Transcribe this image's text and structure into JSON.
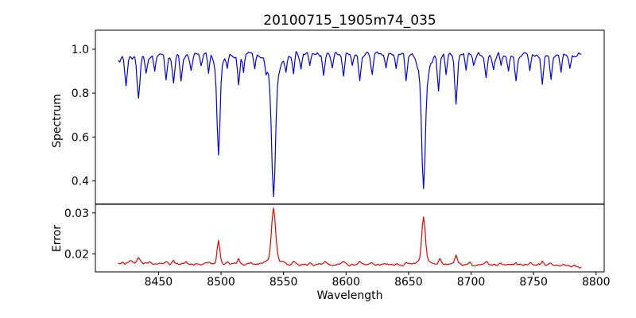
{
  "figure": {
    "background": "#ffffff",
    "text_color": "#000000",
    "axis_color": "#000000"
  },
  "chart_data": {
    "type": "line",
    "title": "20100715_1905m74_035",
    "xlabel": "Wavelength",
    "grid": false,
    "legend": "none",
    "xlim": [
      8399.5,
      8806.5
    ],
    "x_data_range": [
      8418,
      8788
    ],
    "x_sample_step": 1.0,
    "xtick_values": [
      8450,
      8500,
      8550,
      8600,
      8650,
      8700,
      8750,
      8800
    ],
    "xtick_labels": [
      "8450",
      "8500",
      "8550",
      "8600",
      "8650",
      "8700",
      "8750",
      "8800"
    ],
    "panels": [
      {
        "name": "spectrum",
        "ylabel": "Spectrum",
        "line_color": "#0000ee",
        "ylim": [
          0.2953,
          1.0867
        ],
        "ytick_values": [
          0.4,
          0.6,
          0.8,
          1.0
        ],
        "ytick_labels": [
          "0.4",
          "0.6",
          "0.8",
          "1.0"
        ],
        "model": {
          "kind": "absorption_spectrum",
          "continuum_trend": [
            [
              8418,
              0.955
            ],
            [
              8430,
              0.965
            ],
            [
              8460,
              0.97
            ],
            [
              8500,
              0.975
            ],
            [
              8560,
              0.98
            ],
            [
              8620,
              0.976
            ],
            [
              8700,
              0.975
            ],
            [
              8788,
              0.97
            ]
          ],
          "noise_amp": 0.012,
          "noise_seed": 7,
          "absorption_lines": [
            [
              8413,
              0.1,
              1.0
            ],
            [
              8424,
              0.13,
              0.9
            ],
            [
              8434,
              0.19,
              1.1
            ],
            [
              8440,
              0.08,
              0.8
            ],
            [
              8447,
              0.07,
              0.8
            ],
            [
              8456,
              0.1,
              0.9
            ],
            [
              8462,
              0.13,
              0.9
            ],
            [
              8468,
              0.12,
              0.9
            ],
            [
              8476,
              0.07,
              0.8
            ],
            [
              8484,
              0.05,
              0.8
            ],
            [
              8490,
              0.09,
              0.8
            ],
            [
              8498,
              0.38,
              1.1
            ],
            [
              8498,
              0.09,
              3.0
            ],
            [
              8505,
              0.06,
              0.8
            ],
            [
              8514,
              0.15,
              0.9
            ],
            [
              8518,
              0.09,
              0.8
            ],
            [
              8527,
              0.07,
              0.8
            ],
            [
              8536,
              0.05,
              0.8
            ],
            [
              8542,
              0.53,
              1.5
            ],
            [
              8542,
              0.13,
              4.5
            ],
            [
              8552,
              0.07,
              0.8
            ],
            [
              8558,
              0.08,
              0.8
            ],
            [
              8564,
              0.07,
              0.8
            ],
            [
              8571,
              0.06,
              0.8
            ],
            [
              8582,
              0.11,
              0.9
            ],
            [
              8589,
              0.07,
              0.8
            ],
            [
              8598,
              0.11,
              0.9
            ],
            [
              8605,
              0.06,
              0.8
            ],
            [
              8611,
              0.13,
              0.9
            ],
            [
              8621,
              0.09,
              0.9
            ],
            [
              8632,
              0.07,
              0.8
            ],
            [
              8640,
              0.06,
              0.8
            ],
            [
              8648,
              0.11,
              0.9
            ],
            [
              8662,
              0.5,
              1.4
            ],
            [
              8662,
              0.13,
              3.8
            ],
            [
              8674,
              0.17,
              0.9
            ],
            [
              8680,
              0.08,
              0.8
            ],
            [
              8688,
              0.23,
              1.0
            ],
            [
              8696,
              0.06,
              0.8
            ],
            [
              8702,
              0.05,
              0.8
            ],
            [
              8712,
              0.11,
              0.9
            ],
            [
              8718,
              0.07,
              0.8
            ],
            [
              8724,
              0.05,
              0.8
            ],
            [
              8730,
              0.08,
              0.8
            ],
            [
              8736,
              0.12,
              0.9
            ],
            [
              8747,
              0.08,
              0.8
            ],
            [
              8757,
              0.14,
              0.9
            ],
            [
              8764,
              0.11,
              0.9
            ],
            [
              8772,
              0.07,
              0.8
            ],
            [
              8779,
              0.06,
              0.8
            ]
          ],
          "notable_minima": [
            [
              8498,
              0.52
            ],
            [
              8542,
              0.33
            ],
            [
              8662,
              0.36
            ],
            [
              8688,
              0.77
            ]
          ]
        }
      },
      {
        "name": "error",
        "ylabel": "Error",
        "line_color": "#ee0000",
        "ylim": [
          0.0156,
          0.0321
        ],
        "ytick_values": [
          0.02,
          0.03
        ],
        "ytick_labels": [
          "0.02",
          "0.03"
        ],
        "model": {
          "kind": "error_spectrum",
          "baseline_trend": [
            [
              8418,
              0.0178
            ],
            [
              8500,
              0.0175
            ],
            [
              8600,
              0.0174
            ],
            [
              8700,
              0.0174
            ],
            [
              8760,
              0.0173
            ],
            [
              8780,
              0.0171
            ],
            [
              8788,
              0.0167
            ]
          ],
          "noise_amp": 0.00028,
          "noise_seed": 12,
          "emission_peaks": [
            [
              8428,
              0.0007,
              1.0
            ],
            [
              8434,
              0.0013,
              1.0
            ],
            [
              8443,
              0.0006,
              0.9
            ],
            [
              8456,
              0.0006,
              0.9
            ],
            [
              8462,
              0.0009,
              0.9
            ],
            [
              8472,
              0.0005,
              0.9
            ],
            [
              8490,
              0.0005,
              0.9
            ],
            [
              8498,
              0.0058,
              1.1
            ],
            [
              8505,
              0.0006,
              0.9
            ],
            [
              8514,
              0.0014,
              0.9
            ],
            [
              8524,
              0.0006,
              0.9
            ],
            [
              8542,
              0.0125,
              1.6
            ],
            [
              8542,
              0.0012,
              6.0
            ],
            [
              8558,
              0.0008,
              0.9
            ],
            [
              8571,
              0.0005,
              0.9
            ],
            [
              8583,
              0.0007,
              0.9
            ],
            [
              8598,
              0.0009,
              0.9
            ],
            [
              8611,
              0.0007,
              0.9
            ],
            [
              8621,
              0.0005,
              0.9
            ],
            [
              8648,
              0.0007,
              0.9
            ],
            [
              8662,
              0.0105,
              1.4
            ],
            [
              8662,
              0.001,
              5.0
            ],
            [
              8675,
              0.0014,
              0.9
            ],
            [
              8688,
              0.0023,
              1.0
            ],
            [
              8699,
              0.0005,
              0.9
            ],
            [
              8712,
              0.0008,
              0.9
            ],
            [
              8724,
              0.0005,
              0.9
            ],
            [
              8736,
              0.0007,
              0.9
            ],
            [
              8747,
              0.0005,
              0.9
            ],
            [
              8757,
              0.0009,
              0.9
            ],
            [
              8764,
              0.0006,
              0.9
            ]
          ],
          "notable_maxima": [
            [
              8498,
              0.0235
            ],
            [
              8542,
              0.0305
            ],
            [
              8662,
              0.0285
            ]
          ]
        }
      }
    ]
  }
}
